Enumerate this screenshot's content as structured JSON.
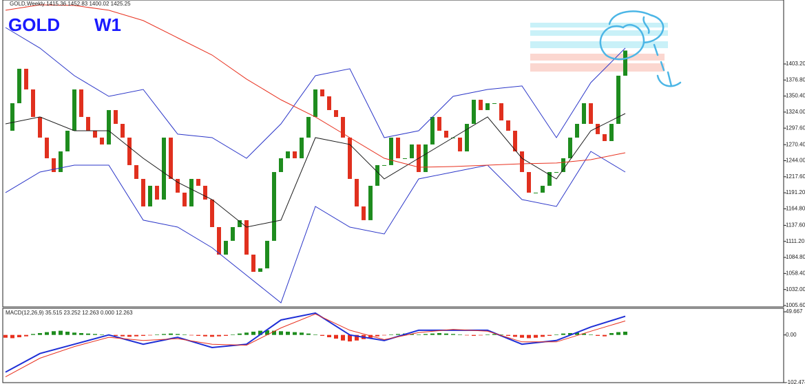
{
  "chart_data": [
    {
      "type": "candlestick",
      "header": "GOLD,Weekly  1415.36 1452.83 1400.02 1425.25",
      "symbol": "GOLD",
      "timeframe": "W1",
      "xlim": [
        -0.4,
        113.0
      ],
      "ylim": [
        1003.3,
        1508.5
      ],
      "yticks": [
        {
          "value": 1005.6,
          "label": "1005.60"
        },
        {
          "value": 1032,
          "label": "1032.00"
        },
        {
          "value": 1058.4,
          "label": "1058.40"
        },
        {
          "value": 1084.8,
          "label": "1084.80"
        },
        {
          "value": 1111.2,
          "label": "1111.20"
        },
        {
          "value": 1137.6,
          "label": "1137.60"
        },
        {
          "value": 1164.8,
          "label": "1164.80"
        },
        {
          "value": 1191.2,
          "label": "1191.20"
        },
        {
          "value": 1217.6,
          "label": "1217.60"
        },
        {
          "value": 1244,
          "label": "1244.00"
        },
        {
          "value": 1270.4,
          "label": "1270.40"
        },
        {
          "value": 1297.6,
          "label": "1297.60"
        },
        {
          "value": 1324,
          "label": "1324.00"
        },
        {
          "value": 1350.4,
          "label": "1350.40"
        },
        {
          "value": 1376.8,
          "label": "1376.80"
        },
        {
          "value": 1403.2,
          "label": "1403.20"
        }
      ],
      "up_color": "#1e8c1e",
      "down_color": "#e0301e",
      "values": [
        1293.3,
        1338.6,
        1395.3,
        1361.3,
        1316.0,
        1282.0,
        1248.0,
        1225.3,
        1259.3,
        1293.3,
        1361.3,
        1316.0,
        1293.3,
        1282.0,
        1270.7,
        1327.3,
        1304.6,
        1282.0,
        1236.7,
        1214.0,
        1168.7,
        1202.7,
        1180.0,
        1282.0,
        1214.0,
        1191.4,
        1168.7,
        1214.0,
        1202.7,
        1180.0,
        1134.7,
        1089.4,
        1112.1,
        1134.7,
        1146.1,
        1089.4,
        1061.1,
        1066.8,
        1112.1,
        1225.3,
        1248.0,
        1259.3,
        1248.0,
        1282.0,
        1316.0,
        1361.3,
        1349.9,
        1327.3,
        1316.0,
        1282.0,
        1214.0,
        1168.7,
        1146.1,
        1202.7,
        1236.7,
        1236.7,
        1282.0,
        1248.0,
        1248.0,
        1270.7,
        1225.3,
        1270.7,
        1316.0,
        1293.3,
        1282.0,
        1282.0,
        1259.3,
        1304.6,
        1344.3,
        1327.3,
        1338.6,
        1338.6,
        1310.3,
        1293.3,
        1259.3,
        1225.3,
        1191.4,
        1191.4,
        1202.7,
        1225.3,
        1225.3,
        1248.0,
        1282.0,
        1304.6,
        1338.6,
        1304.6,
        1287.7,
        1276.3,
        1304.6,
        1383.9,
        1425.3
      ],
      "overlay_x": [
        0,
        5,
        10,
        15,
        20,
        25,
        30,
        35,
        40,
        45,
        50,
        55,
        60,
        65,
        70,
        75,
        80,
        85,
        90
      ],
      "overlays": [
        {
          "color": "#2a35c8",
          "values": [
            1463.2,
            1429.3,
            1383.9,
            1349.9,
            1361.3,
            1287.7,
            1282.0,
            1248.0,
            1304.6,
            1383.9,
            1395.3,
            1282.0,
            1293.3,
            1349.9,
            1361.3,
            1367.0,
            1282.0,
            1372.6,
            1429.3
          ]
        },
        {
          "color": "#2a35c8",
          "values": [
            1191.4,
            1225.3,
            1236.7,
            1236.7,
            1146.1,
            1134.7,
            1100.7,
            1055.4,
            1010.1,
            1168.7,
            1134.7,
            1123.4,
            1214.0,
            1225.3,
            1236.7,
            1180.0,
            1168.7,
            1259.3,
            1225.3
          ]
        },
        {
          "color": "#1a1a1a",
          "values": [
            1304.6,
            1316.0,
            1293.3,
            1293.3,
            1248.0,
            1208.4,
            1180.0,
            1134.7,
            1146.1,
            1282.0,
            1270.7,
            1214.0,
            1248.0,
            1282.0,
            1316.0,
            1248.0,
            1214.0,
            1293.3,
            1321.6
          ]
        },
        {
          "color": "#e8301e",
          "values": [
            1491.6,
            1500.6,
            1499.5,
            1491.6,
            1474.6,
            1446.2,
            1417.9,
            1378.3,
            1344.3,
            1316.0,
            1282.0,
            1248.0,
            1233.3,
            1234.4,
            1236.7,
            1238.9,
            1240.1,
            1245.7,
            1257.0
          ]
        }
      ]
    },
    {
      "type": "macd",
      "title": "MACD(12,26,9) 35.515 23.252 12.263 0.000 12.263",
      "xlim": [
        -0.4,
        113.0
      ],
      "ylim": [
        -102.474,
        57.2
      ],
      "yticks": [
        49.667,
        {
          "value": 0,
          "label": "0.00"
        },
        -102.474
      ],
      "up_color": "#1e8c1e",
      "down_color": "#e8301e",
      "histogram": [
        -6,
        -7,
        -5,
        -3,
        2,
        4,
        6,
        8,
        9,
        7,
        5,
        4,
        3,
        2,
        1,
        -1,
        -2,
        -3,
        -4,
        -3,
        -2,
        -1,
        1,
        2,
        3,
        2,
        1,
        -1,
        -2,
        -3,
        -4,
        -3,
        -2,
        1,
        3,
        5,
        7,
        9,
        10,
        9,
        8,
        7,
        6,
        5,
        3,
        1,
        -2,
        -5,
        -8,
        -12,
        -14,
        -12,
        -9,
        -6,
        -3,
        -1,
        1,
        2,
        3,
        2,
        1,
        2,
        3,
        4,
        3,
        2,
        1,
        -1,
        -2,
        -1,
        1,
        2,
        1,
        -2,
        -4,
        -6,
        -7,
        -6,
        -4,
        -2,
        1,
        3,
        4,
        5,
        3,
        1,
        -2,
        -3,
        4,
        6,
        7
      ],
      "line_x": [
        0,
        5,
        10,
        15,
        20,
        25,
        30,
        35,
        40,
        45,
        50,
        55,
        60,
        65,
        70,
        75,
        80,
        85,
        90
      ],
      "lines": [
        {
          "color": "#1f2fd6",
          "values": [
            -80,
            -40,
            -20,
            0,
            -20,
            -5,
            -27,
            -20,
            32,
            47,
            0,
            -12,
            10,
            10,
            10,
            -20,
            -12,
            17,
            40
          ]
        },
        {
          "color": "#e8301e",
          "values": [
            -90,
            -50,
            -25,
            -5,
            -12,
            -8,
            -20,
            -22,
            15,
            45,
            10,
            -10,
            5,
            12,
            8,
            -15,
            -15,
            8,
            30
          ]
        }
      ]
    }
  ]
}
